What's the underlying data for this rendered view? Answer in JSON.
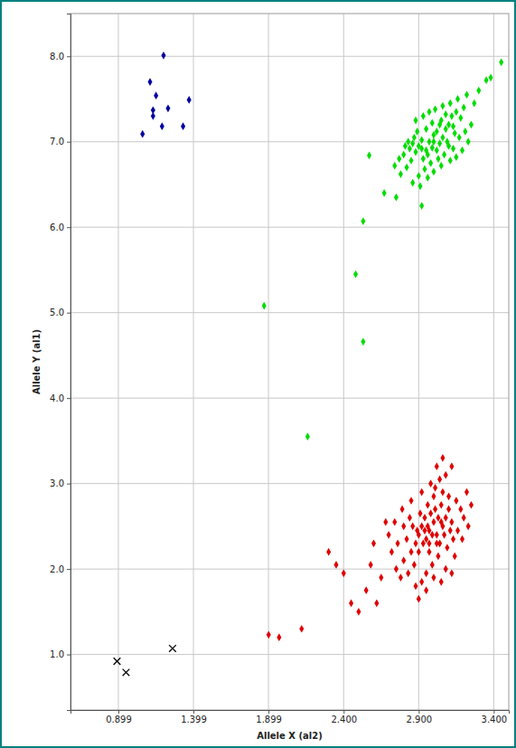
{
  "chart_data": {
    "type": "scatter",
    "xlabel": "Allele X (al2)",
    "ylabel": "Allele Y (al1)",
    "xlim": [
      0.58,
      3.5
    ],
    "ylim": [
      0.35,
      8.5
    ],
    "xticks": [
      0.899,
      1.399,
      1.899,
      {
        "value": 2.4,
        "label": "2.400"
      },
      {
        "value": 2.9,
        "label": "2.900"
      },
      {
        "value": 3.4,
        "label": "3.400"
      }
    ],
    "yticks": [
      {
        "value": 1,
        "label": "1.0"
      },
      {
        "value": 2,
        "label": "2.0"
      },
      {
        "value": 3,
        "label": "3.0"
      },
      {
        "value": 4,
        "label": "4.0"
      },
      {
        "value": 5,
        "label": "5.0"
      },
      {
        "value": 6,
        "label": "6.0"
      },
      {
        "value": 7,
        "label": "7.0"
      },
      {
        "value": 8,
        "label": "8.0"
      }
    ],
    "grid": true,
    "series": [
      {
        "color": "#0000a0",
        "marker": "diamond",
        "x": [
          1.06,
          1.11,
          1.15,
          1.13,
          1.13,
          1.2,
          1.23,
          1.19,
          1.37,
          1.33
        ],
        "values": [
          7.09,
          7.7,
          7.54,
          7.3,
          7.37,
          8.01,
          7.39,
          7.18,
          7.49,
          7.18
        ]
      },
      {
        "color": "#00dd00",
        "marker": "diamond",
        "x": [
          2.78,
          2.82,
          2.85,
          2.8,
          2.84,
          2.88,
          2.9,
          2.92,
          2.87,
          2.93,
          2.95,
          2.97,
          2.99,
          3.0,
          3.02,
          3.04,
          3.06,
          3.08,
          3.1,
          3.05,
          3.12,
          3.15,
          3.18,
          3.2,
          3.14,
          3.1,
          3.07,
          3.03,
          2.98,
          2.94,
          2.9,
          2.86,
          2.91,
          2.96,
          3.0,
          3.02,
          3.04,
          2.99,
          2.95,
          2.89,
          2.83,
          2.81,
          2.77,
          2.74,
          2.88,
          2.93,
          2.97,
          3.01,
          3.06,
          3.11,
          3.16,
          3.22,
          3.08,
          3.13,
          3.17,
          3.21,
          3.25,
          3.23,
          3.19,
          3.15,
          3.11,
          3.05,
          2.96,
          2.92,
          2.86,
          3.0,
          3.09,
          3.13,
          3.27,
          3.3,
          3.45,
          3.35,
          3.38,
          2.57,
          2.67,
          2.75,
          2.92,
          2.53,
          2.48,
          2.53,
          1.87,
          2.16
        ],
        "values": [
          6.62,
          6.7,
          6.78,
          6.85,
          6.92,
          6.88,
          6.95,
          7.02,
          7.05,
          6.8,
          6.9,
          7.0,
          6.93,
          7.08,
          7.12,
          6.98,
          7.05,
          7.15,
          7.2,
          7.25,
          7.3,
          7.35,
          7.28,
          7.4,
          7.1,
          6.95,
          6.85,
          6.8,
          6.75,
          6.68,
          6.6,
          6.52,
          6.48,
          6.58,
          6.65,
          6.9,
          7.2,
          7.22,
          7.15,
          7.12,
          7.0,
          6.95,
          6.8,
          6.72,
          7.25,
          7.3,
          7.35,
          7.38,
          7.42,
          7.45,
          7.5,
          7.55,
          7.32,
          7.18,
          7.05,
          7.12,
          7.2,
          7.0,
          6.9,
          6.82,
          6.78,
          6.72,
          6.85,
          6.92,
          6.98,
          7.0,
          7.0,
          6.92,
          7.45,
          7.6,
          7.93,
          7.72,
          7.75,
          6.84,
          6.4,
          6.35,
          6.25,
          6.07,
          5.45,
          4.66,
          5.08,
          3.55
        ]
      },
      {
        "color": "#e00000",
        "marker": "diamond",
        "x": [
          2.8,
          2.85,
          2.88,
          2.9,
          2.92,
          2.95,
          2.97,
          3.0,
          3.02,
          3.04,
          3.06,
          3.08,
          3.1,
          3.12,
          3.05,
          3.0,
          2.98,
          2.94,
          2.9,
          2.87,
          2.83,
          2.78,
          2.75,
          2.82,
          2.86,
          2.91,
          2.96,
          3.01,
          3.04,
          3.08,
          3.12,
          3.06,
          3.1,
          3.15,
          3.18,
          3.2,
          3.16,
          3.13,
          3.09,
          3.03,
          2.99,
          2.95,
          2.92,
          2.88,
          2.97,
          3.02,
          3.07,
          3.11,
          2.93,
          2.89,
          2.84,
          2.8,
          2.76,
          2.72,
          2.7,
          2.74,
          2.79,
          2.85,
          2.92,
          2.98,
          3.02,
          3.06,
          3.22,
          3.25,
          3.23,
          3.19,
          3.14,
          3.08,
          3.0,
          2.95,
          2.9,
          3.05,
          3.12,
          2.99,
          2.96,
          3.03,
          3.01,
          2.94,
          3.05,
          2.97,
          2.55,
          2.45,
          2.5,
          2.4,
          2.35,
          2.6,
          2.65,
          2.62,
          2.3,
          2.12,
          1.97,
          1.9,
          2.58,
          2.68
        ],
        "values": [
          2.1,
          2.2,
          2.3,
          2.4,
          2.5,
          2.35,
          2.45,
          2.55,
          2.4,
          2.3,
          2.5,
          2.6,
          2.7,
          2.55,
          2.75,
          2.85,
          2.65,
          2.6,
          2.2,
          2.05,
          1.95,
          1.9,
          2.0,
          2.35,
          2.5,
          2.65,
          2.75,
          2.95,
          3.05,
          3.1,
          3.2,
          2.9,
          2.85,
          2.8,
          2.7,
          2.6,
          2.45,
          2.35,
          2.25,
          2.15,
          2.05,
          1.95,
          1.85,
          1.8,
          2.2,
          2.3,
          2.4,
          2.45,
          2.3,
          2.45,
          2.6,
          2.5,
          2.3,
          2.2,
          2.4,
          2.55,
          2.7,
          2.8,
          2.9,
          3.0,
          3.2,
          3.3,
          2.9,
          2.75,
          2.5,
          2.35,
          2.15,
          2.0,
          1.9,
          1.75,
          1.65,
          1.85,
          1.95,
          2.4,
          2.5,
          2.6,
          2.7,
          2.45,
          2.55,
          2.3,
          1.75,
          1.6,
          1.5,
          1.95,
          2.05,
          2.3,
          1.9,
          1.6,
          2.2,
          1.3,
          1.2,
          1.23,
          2.05,
          2.55
        ]
      },
      {
        "color": "#000000",
        "marker": "x",
        "x": [
          0.89,
          0.95,
          1.26
        ],
        "values": [
          0.92,
          0.79,
          1.07
        ]
      }
    ]
  }
}
